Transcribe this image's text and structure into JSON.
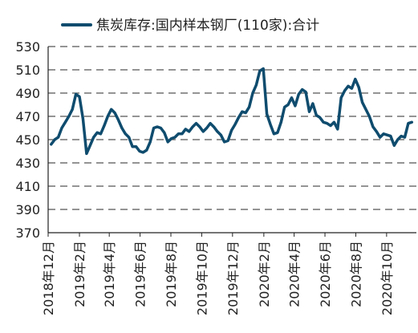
{
  "chart_data": {
    "type": "line",
    "title": "",
    "xlabel": "",
    "ylabel": "",
    "ylim": [
      370,
      530
    ],
    "yticks": [
      370,
      390,
      410,
      430,
      450,
      470,
      490,
      510,
      530
    ],
    "grid": true,
    "legend_position": "top",
    "x_tick_labels": [
      "2018年12月",
      "2019年2月",
      "2019年4月",
      "2019年6月",
      "2019年8月",
      "2019年10月",
      "2019年12月",
      "2020年2月",
      "2020年4月",
      "2020年6月",
      "2020年8月",
      "2020年10月"
    ],
    "x_tick_dates": [
      "2018-12",
      "2019-02",
      "2019-04",
      "2019-06",
      "2019-08",
      "2019-10",
      "2019-12",
      "2020-02",
      "2020-04",
      "2020-06",
      "2020-08",
      "2020-10"
    ],
    "x_range": [
      "2018-12-01",
      "2020-11-29"
    ],
    "series": [
      {
        "name": "焦炭库存:国内样本钢厂(110家):合计",
        "color": "#0f4c6e",
        "points": [
          [
            "2018-12-07",
            446
          ],
          [
            "2018-12-14",
            450
          ],
          [
            "2018-12-21",
            452
          ],
          [
            "2018-12-28",
            460
          ],
          [
            "2019-01-04",
            465
          ],
          [
            "2019-01-11",
            470
          ],
          [
            "2019-01-18",
            476
          ],
          [
            "2019-01-25",
            489
          ],
          [
            "2019-02-01",
            487
          ],
          [
            "2019-02-08",
            468
          ],
          [
            "2019-02-15",
            438
          ],
          [
            "2019-02-22",
            445
          ],
          [
            "2019-03-01",
            452
          ],
          [
            "2019-03-08",
            456
          ],
          [
            "2019-03-15",
            455
          ],
          [
            "2019-03-22",
            462
          ],
          [
            "2019-03-29",
            470
          ],
          [
            "2019-04-05",
            476
          ],
          [
            "2019-04-12",
            473
          ],
          [
            "2019-04-19",
            467
          ],
          [
            "2019-04-26",
            460
          ],
          [
            "2019-05-03",
            455
          ],
          [
            "2019-05-10",
            452
          ],
          [
            "2019-05-17",
            444
          ],
          [
            "2019-05-24",
            444
          ],
          [
            "2019-05-31",
            440
          ],
          [
            "2019-06-07",
            439
          ],
          [
            "2019-06-14",
            441
          ],
          [
            "2019-06-21",
            448
          ],
          [
            "2019-06-28",
            460
          ],
          [
            "2019-07-05",
            461
          ],
          [
            "2019-07-12",
            460
          ],
          [
            "2019-07-19",
            456
          ],
          [
            "2019-07-26",
            448
          ],
          [
            "2019-08-02",
            451
          ],
          [
            "2019-08-09",
            452
          ],
          [
            "2019-08-16",
            455
          ],
          [
            "2019-08-23",
            455
          ],
          [
            "2019-08-30",
            459
          ],
          [
            "2019-09-06",
            457
          ],
          [
            "2019-09-13",
            461
          ],
          [
            "2019-09-20",
            464
          ],
          [
            "2019-09-27",
            461
          ],
          [
            "2019-10-04",
            457
          ],
          [
            "2019-10-11",
            460
          ],
          [
            "2019-10-18",
            464
          ],
          [
            "2019-10-25",
            461
          ],
          [
            "2019-11-01",
            457
          ],
          [
            "2019-11-08",
            454
          ],
          [
            "2019-11-15",
            448
          ],
          [
            "2019-11-22",
            449
          ],
          [
            "2019-11-29",
            458
          ],
          [
            "2019-12-06",
            463
          ],
          [
            "2019-12-13",
            469
          ],
          [
            "2019-12-20",
            474
          ],
          [
            "2019-12-27",
            473
          ],
          [
            "2020-01-03",
            478
          ],
          [
            "2020-01-10",
            490
          ],
          [
            "2020-01-17",
            497
          ],
          [
            "2020-01-24",
            509
          ],
          [
            "2020-01-31",
            511
          ],
          [
            "2020-02-07",
            472
          ],
          [
            "2020-02-14",
            463
          ],
          [
            "2020-02-21",
            455
          ],
          [
            "2020-02-28",
            456
          ],
          [
            "2020-03-06",
            465
          ],
          [
            "2020-03-13",
            478
          ],
          [
            "2020-03-20",
            480
          ],
          [
            "2020-03-27",
            486
          ],
          [
            "2020-04-03",
            479
          ],
          [
            "2020-04-10",
            489
          ],
          [
            "2020-04-17",
            493
          ],
          [
            "2020-04-24",
            491
          ],
          [
            "2020-05-01",
            474
          ],
          [
            "2020-05-08",
            481
          ],
          [
            "2020-05-15",
            471
          ],
          [
            "2020-05-22",
            469
          ],
          [
            "2020-05-29",
            465
          ],
          [
            "2020-06-05",
            464
          ],
          [
            "2020-06-12",
            462
          ],
          [
            "2020-06-19",
            465
          ],
          [
            "2020-06-26",
            459
          ],
          [
            "2020-07-03",
            486
          ],
          [
            "2020-07-10",
            492
          ],
          [
            "2020-07-17",
            496
          ],
          [
            "2020-07-24",
            494
          ],
          [
            "2020-07-31",
            502
          ],
          [
            "2020-08-07",
            495
          ],
          [
            "2020-08-14",
            482
          ],
          [
            "2020-08-21",
            476
          ],
          [
            "2020-08-28",
            470
          ],
          [
            "2020-09-04",
            461
          ],
          [
            "2020-09-11",
            457
          ],
          [
            "2020-09-18",
            452
          ],
          [
            "2020-09-25",
            455
          ],
          [
            "2020-10-02",
            454
          ],
          [
            "2020-10-09",
            453
          ],
          [
            "2020-10-16",
            445
          ],
          [
            "2020-10-23",
            450
          ],
          [
            "2020-10-30",
            453
          ],
          [
            "2020-11-06",
            452
          ],
          [
            "2020-11-13",
            464
          ],
          [
            "2020-11-20",
            465
          ]
        ]
      }
    ]
  }
}
